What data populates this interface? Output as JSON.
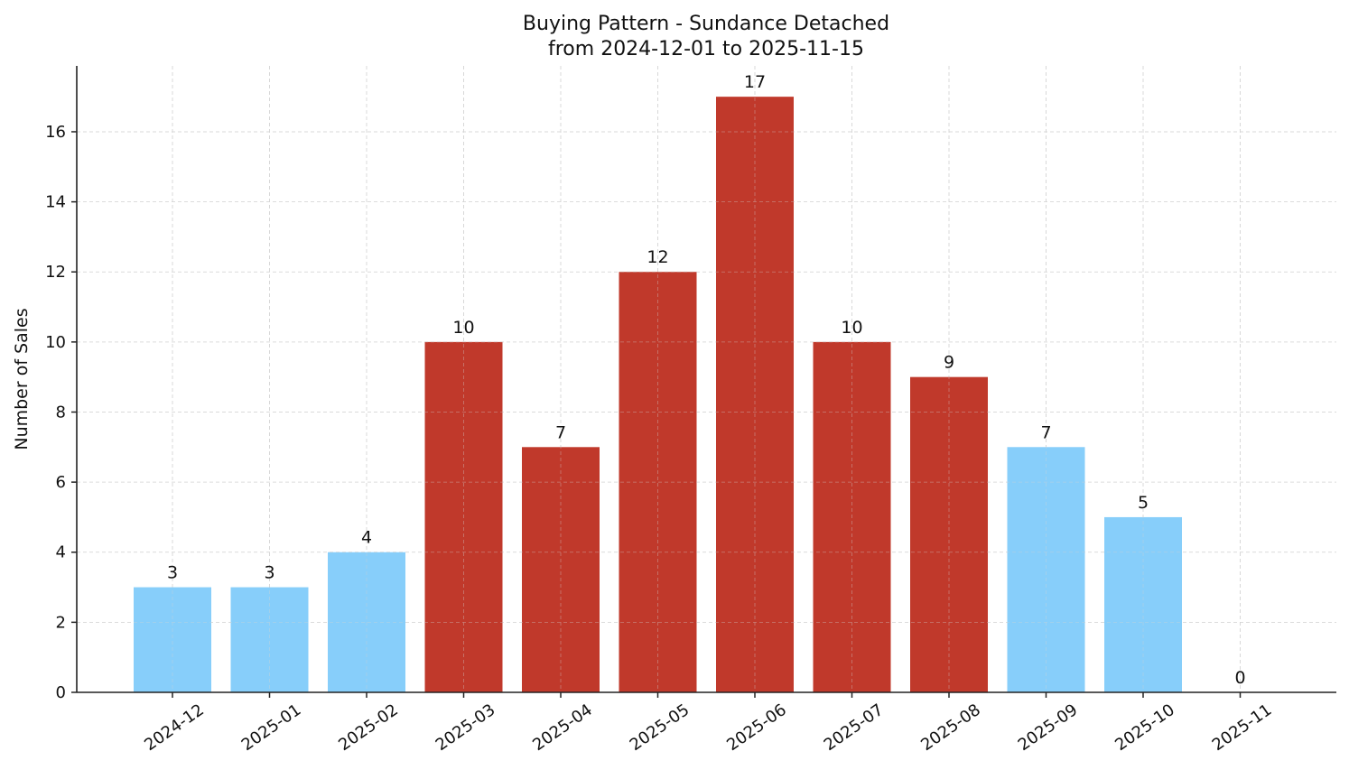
{
  "header": {
    "title_line1": "Buying Pattern - Sundance Detached",
    "title_line2": "from 2024-12-01 to 2025-11-15"
  },
  "colors": {
    "high": "#c0392b",
    "low": "#87cefa",
    "grid": "#d3d3d3",
    "axis": "#222222"
  },
  "chart_data": {
    "type": "bar",
    "title": "Buying Pattern - Sundance Detached\nfrom 2024-12-01 to 2025-11-15",
    "xlabel": "",
    "ylabel": "Number of Sales",
    "categories": [
      "2024-12",
      "2025-01",
      "2025-02",
      "2025-03",
      "2025-04",
      "2025-05",
      "2025-06",
      "2025-07",
      "2025-08",
      "2025-09",
      "2025-10",
      "2025-11"
    ],
    "values": [
      3,
      3,
      4,
      10,
      7,
      12,
      17,
      10,
      9,
      7,
      5,
      0
    ],
    "bar_colors": [
      "#87cefa",
      "#87cefa",
      "#87cefa",
      "#c0392b",
      "#c0392b",
      "#c0392b",
      "#c0392b",
      "#c0392b",
      "#c0392b",
      "#87cefa",
      "#87cefa",
      "#87cefa"
    ],
    "data_labels": [
      "3",
      "3",
      "4",
      "10",
      "7",
      "12",
      "17",
      "10",
      "9",
      "7",
      "5",
      "0"
    ],
    "yticks": [
      0,
      2,
      4,
      6,
      8,
      10,
      12,
      14,
      16
    ],
    "ylim": [
      0,
      17.88
    ],
    "grid": true,
    "legend": null,
    "xtick_rotation": 35
  }
}
